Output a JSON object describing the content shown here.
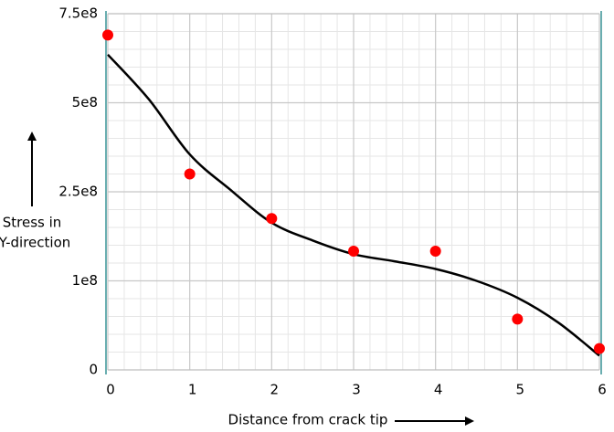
{
  "chart_data": {
    "type": "scatter",
    "xlabel": "Distance from crack tip",
    "ylabel": [
      "Stress in",
      "Y-direction"
    ],
    "xlim": [
      0,
      6
    ],
    "xticks": [
      0,
      1,
      2,
      3,
      4,
      5,
      6
    ],
    "ylim": [
      0,
      750000000
    ],
    "yticks": [
      0,
      {
        "value": 100000000,
        "label": "1e8"
      },
      {
        "value": 250000000,
        "label": "2.5e8"
      },
      {
        "value": 500000000,
        "label": "5e8"
      },
      {
        "value": 750000000,
        "label": "7.5e8"
      }
    ],
    "grid": true,
    "series": [
      {
        "mode": "markers",
        "color": "#ff0000",
        "x": [
          0,
          1,
          2,
          3,
          4,
          5,
          6
        ],
        "values": [
          690000000,
          300000000,
          205000000,
          150000000,
          150000000,
          57000000,
          24000000
        ]
      },
      {
        "mode": "line",
        "color": "#000000",
        "x": [
          0,
          0.5,
          1,
          1.5,
          2,
          2.5,
          3,
          3.5,
          4,
          4.5,
          5,
          5.5,
          6
        ],
        "values": [
          635000000,
          510000000,
          355000000,
          255000000,
          198000000,
          168000000,
          145000000,
          133000000,
          120000000,
          100000000,
          81000000,
          53000000,
          16000000
        ]
      }
    ]
  }
}
